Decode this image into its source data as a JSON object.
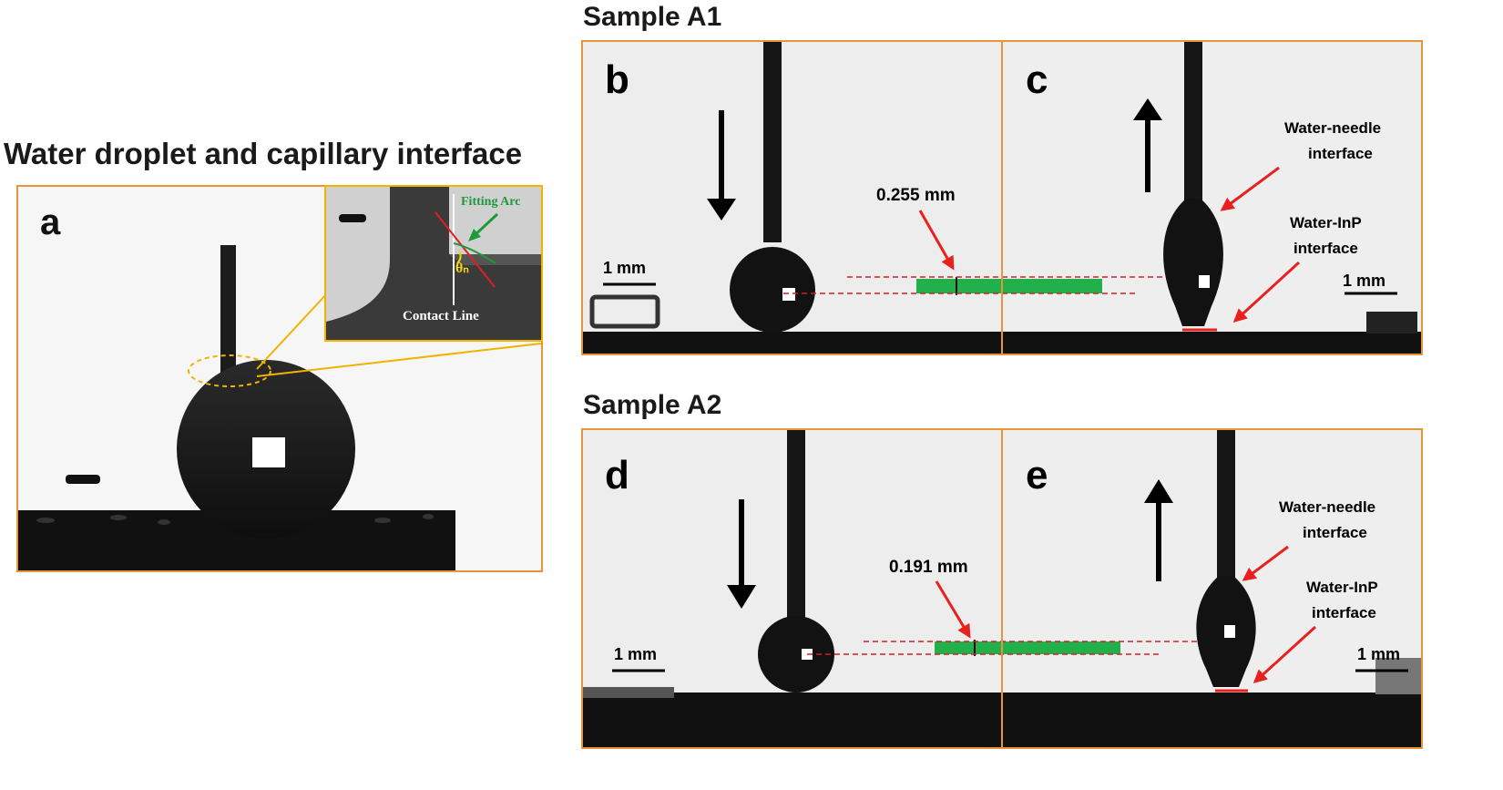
{
  "headings": {
    "left_title": "Water droplet and capillary interface",
    "sample_a1": "Sample A1",
    "sample_a2": "Sample A2"
  },
  "panels": {
    "a": {
      "letter": "a"
    },
    "inset": {
      "fitting_arc": "Fitting Arc",
      "theta": "θₙ",
      "contact_line": "Contact Line"
    },
    "b": {
      "letter": "b",
      "scale": "1 mm",
      "measurement": "0.255 mm"
    },
    "c": {
      "letter": "c",
      "scale": "1 mm",
      "label_needle_1": "Water-needle",
      "label_needle_2": "interface",
      "label_inp_1": "Water-InP",
      "label_inp_2": "interface"
    },
    "d": {
      "letter": "d",
      "scale": "1 mm",
      "measurement": "0.191 mm"
    },
    "e": {
      "letter": "e",
      "scale": "1 mm",
      "label_needle_1": "Water-needle",
      "label_needle_2": "interface",
      "label_inp_1": "Water-InP",
      "label_inp_2": "interface"
    }
  },
  "colors": {
    "frame": "#e8953a",
    "arrow_red": "#e8201e",
    "band_green": "#22b04a",
    "fit_green": "#1e9a3a",
    "theta_yellow": "#f5d800"
  }
}
